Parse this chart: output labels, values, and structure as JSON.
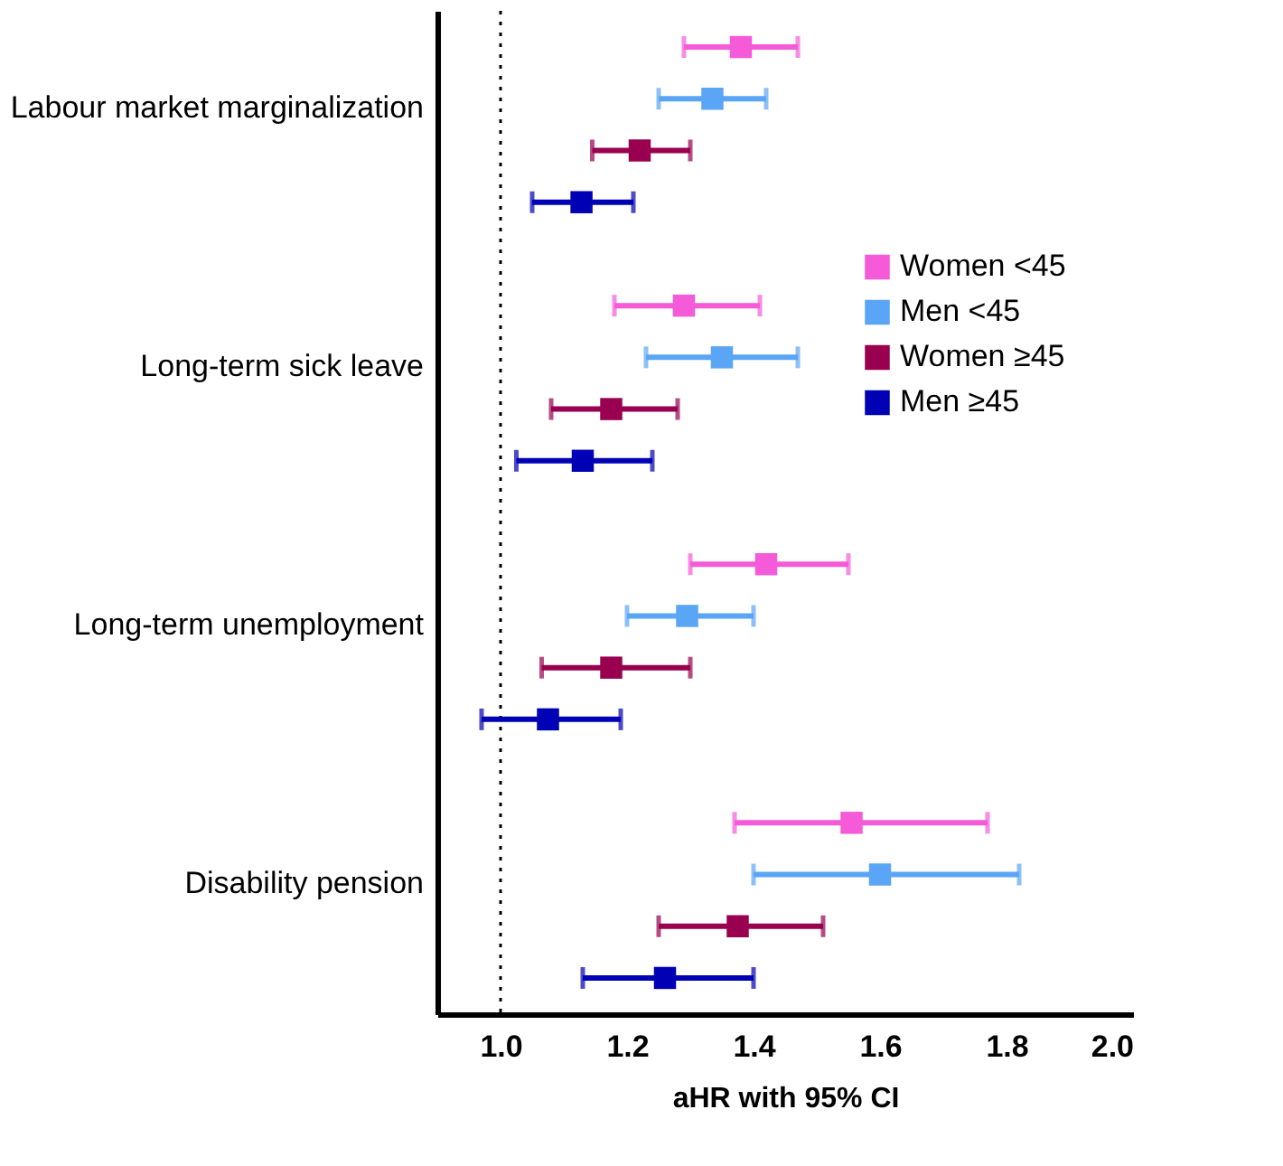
{
  "chart_data": {
    "type": "scatter",
    "orientation": "horizontal",
    "xlabel": "aHR with 95% CI",
    "categories": [
      "Labour market marginalization",
      "Long-term sick leave",
      "Long-term unemployment",
      "Disability pension"
    ],
    "series": [
      {
        "name": "Women <45",
        "color": "#f55ad8",
        "values": [
          1.38,
          1.29,
          1.42,
          1.555
        ],
        "errors": [
          [
            1.29,
            1.47
          ],
          [
            1.18,
            1.41
          ],
          [
            1.3,
            1.55
          ],
          [
            1.37,
            1.77
          ]
        ]
      },
      {
        "name": "Men <45",
        "color": "#5aa5f5",
        "values": [
          1.335,
          1.35,
          1.295,
          1.6
        ],
        "errors": [
          [
            1.25,
            1.42
          ],
          [
            1.23,
            1.47
          ],
          [
            1.2,
            1.4
          ],
          [
            1.4,
            1.82
          ]
        ]
      },
      {
        "name": "Women ≥45",
        "color": "#990050",
        "values": [
          1.22,
          1.175,
          1.175,
          1.375
        ],
        "errors": [
          [
            1.145,
            1.3
          ],
          [
            1.08,
            1.28
          ],
          [
            1.065,
            1.3
          ],
          [
            1.25,
            1.51
          ]
        ]
      },
      {
        "name": "Men ≥45",
        "color": "#0000b4",
        "values": [
          1.128,
          1.13,
          1.075,
          1.26
        ],
        "errors": [
          [
            1.05,
            1.21
          ],
          [
            1.025,
            1.24
          ],
          [
            0.97,
            1.19
          ],
          [
            1.13,
            1.4
          ]
        ]
      }
    ],
    "xlim": [
      0.9,
      2.0
    ],
    "xticks": [
      {
        "value": 1.0,
        "label": "1.0"
      },
      {
        "value": 1.2,
        "label": "1.2"
      },
      {
        "value": 1.4,
        "label": "1.4"
      },
      {
        "value": 1.6,
        "label": "1.6"
      },
      {
        "value": 1.8,
        "label": "1.8"
      },
      {
        "value": 2.0,
        "label": "2.0"
      }
    ],
    "ref_lines": [
      {
        "axis": "x",
        "value": 1.0,
        "color": "#000000",
        "line_style": "dotted"
      }
    ],
    "marker": "square",
    "grid": false,
    "legend": "right"
  }
}
